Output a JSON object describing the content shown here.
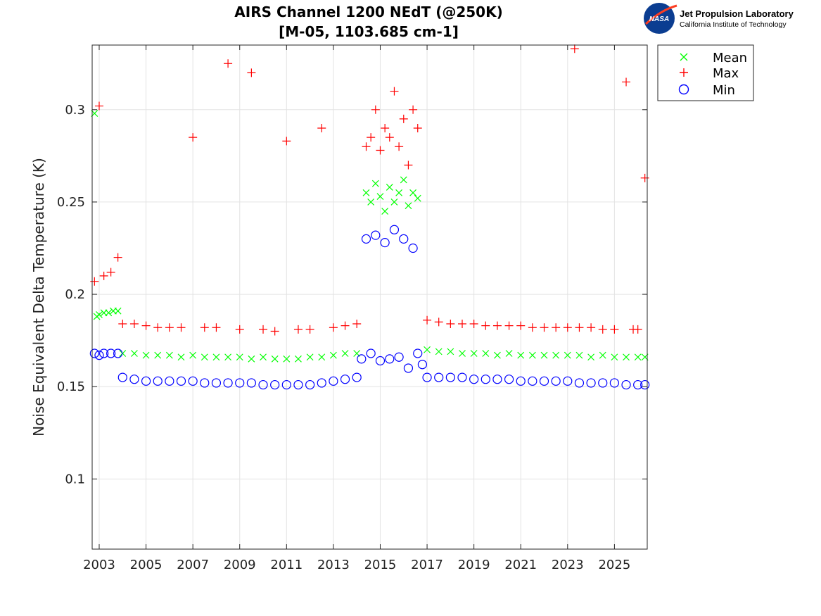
{
  "chart_data": {
    "type": "scatter",
    "title": "AIRS Channel 1200 NEdT (@250K)",
    "subtitle": "[M-05, 1103.685 cm-1]",
    "xlabel": "",
    "ylabel": "Noise Equivalent Delta Temperature (K)",
    "xlim": [
      2002.7,
      2026.4
    ],
    "ylim": [
      0.062,
      0.335
    ],
    "x_ticks": [
      2003,
      2005,
      2007,
      2009,
      2011,
      2013,
      2015,
      2017,
      2019,
      2021,
      2023,
      2025
    ],
    "x_tick_labels": [
      "2003",
      "2005",
      "2007",
      "2009",
      "2011",
      "2013",
      "2015",
      "2017",
      "2019",
      "2021",
      "2023",
      "2025"
    ],
    "y_ticks": [
      0.1,
      0.15,
      0.2,
      0.25,
      0.3
    ],
    "y_tick_labels": [
      "0.1",
      "0.15",
      "0.2",
      "0.25",
      "0.3"
    ],
    "grid": true,
    "legend_position": "outside-top-right",
    "series": [
      {
        "name": "Mean",
        "color": "#00ff00",
        "marker": "x",
        "x": [
          2002.8,
          2002.9,
          2003.0,
          2003.2,
          2003.4,
          2003.6,
          2003.8,
          2004.0,
          2004.5,
          2005.0,
          2005.5,
          2006.0,
          2006.5,
          2007.0,
          2007.5,
          2008.0,
          2008.5,
          2009.0,
          2009.5,
          2010.0,
          2010.5,
          2011.0,
          2011.5,
          2012.0,
          2012.5,
          2013.0,
          2013.5,
          2014.0,
          2014.4,
          2014.6,
          2014.8,
          2015.0,
          2015.2,
          2015.4,
          2015.6,
          2015.8,
          2016.0,
          2016.2,
          2016.4,
          2016.6,
          2017.0,
          2017.5,
          2018.0,
          2018.5,
          2019.0,
          2019.5,
          2020.0,
          2020.5,
          2021.0,
          2021.5,
          2022.0,
          2022.5,
          2023.0,
          2023.5,
          2024.0,
          2024.5,
          2025.0,
          2025.5,
          2026.0,
          2026.3
        ],
        "y": [
          0.298,
          0.188,
          0.189,
          0.19,
          0.19,
          0.191,
          0.191,
          0.168,
          0.168,
          0.167,
          0.167,
          0.167,
          0.166,
          0.167,
          0.166,
          0.166,
          0.166,
          0.166,
          0.165,
          0.166,
          0.165,
          0.165,
          0.165,
          0.166,
          0.166,
          0.167,
          0.168,
          0.168,
          0.255,
          0.25,
          0.26,
          0.253,
          0.245,
          0.258,
          0.25,
          0.255,
          0.262,
          0.248,
          0.255,
          0.252,
          0.17,
          0.169,
          0.169,
          0.168,
          0.168,
          0.168,
          0.167,
          0.168,
          0.167,
          0.167,
          0.167,
          0.167,
          0.167,
          0.167,
          0.166,
          0.167,
          0.166,
          0.166,
          0.166,
          0.166
        ]
      },
      {
        "name": "Max",
        "color": "#ff0000",
        "marker": "+",
        "x": [
          2002.8,
          2003.0,
          2003.2,
          2003.5,
          2003.8,
          2004.0,
          2004.5,
          2005.0,
          2005.5,
          2006.0,
          2006.5,
          2007.0,
          2007.5,
          2008.0,
          2008.5,
          2009.0,
          2009.5,
          2010.0,
          2010.5,
          2011.0,
          2011.5,
          2012.0,
          2012.5,
          2013.0,
          2013.5,
          2014.0,
          2014.4,
          2014.6,
          2014.8,
          2015.0,
          2015.2,
          2015.4,
          2015.6,
          2015.8,
          2016.0,
          2016.2,
          2016.4,
          2016.6,
          2017.0,
          2017.5,
          2018.0,
          2018.5,
          2019.0,
          2019.5,
          2020.0,
          2020.5,
          2021.0,
          2021.5,
          2022.0,
          2022.5,
          2023.0,
          2023.3,
          2023.5,
          2024.0,
          2024.5,
          2025.0,
          2025.5,
          2025.8,
          2026.0,
          2026.3
        ],
        "y": [
          0.207,
          0.302,
          0.21,
          0.212,
          0.22,
          0.184,
          0.184,
          0.183,
          0.182,
          0.182,
          0.182,
          0.285,
          0.182,
          0.182,
          0.325,
          0.181,
          0.32,
          0.181,
          0.18,
          0.283,
          0.181,
          0.181,
          0.29,
          0.182,
          0.183,
          0.184,
          0.28,
          0.285,
          0.3,
          0.278,
          0.29,
          0.285,
          0.31,
          0.28,
          0.295,
          0.27,
          0.3,
          0.29,
          0.186,
          0.185,
          0.184,
          0.184,
          0.184,
          0.183,
          0.183,
          0.183,
          0.183,
          0.182,
          0.182,
          0.182,
          0.182,
          0.333,
          0.182,
          0.182,
          0.181,
          0.181,
          0.315,
          0.181,
          0.181,
          0.263
        ]
      },
      {
        "name": "Min",
        "color": "#0000ff",
        "marker": "o",
        "x": [
          2002.8,
          2003.0,
          2003.2,
          2003.5,
          2003.8,
          2004.0,
          2004.5,
          2005.0,
          2005.5,
          2006.0,
          2006.5,
          2007.0,
          2007.5,
          2008.0,
          2008.5,
          2009.0,
          2009.5,
          2010.0,
          2010.5,
          2011.0,
          2011.5,
          2012.0,
          2012.5,
          2013.0,
          2013.5,
          2014.0,
          2014.2,
          2014.4,
          2014.6,
          2014.8,
          2015.0,
          2015.2,
          2015.4,
          2015.6,
          2015.8,
          2016.0,
          2016.2,
          2016.4,
          2016.6,
          2016.8,
          2017.0,
          2017.5,
          2018.0,
          2018.5,
          2019.0,
          2019.5,
          2020.0,
          2020.5,
          2021.0,
          2021.5,
          2022.0,
          2022.5,
          2023.0,
          2023.5,
          2024.0,
          2024.5,
          2025.0,
          2025.5,
          2026.0,
          2026.3
        ],
        "y": [
          0.168,
          0.167,
          0.168,
          0.168,
          0.168,
          0.155,
          0.154,
          0.153,
          0.153,
          0.153,
          0.153,
          0.153,
          0.152,
          0.152,
          0.152,
          0.152,
          0.152,
          0.151,
          0.151,
          0.151,
          0.151,
          0.151,
          0.152,
          0.153,
          0.154,
          0.155,
          0.165,
          0.23,
          0.168,
          0.232,
          0.164,
          0.228,
          0.165,
          0.235,
          0.166,
          0.23,
          0.16,
          0.225,
          0.168,
          0.162,
          0.155,
          0.155,
          0.155,
          0.155,
          0.154,
          0.154,
          0.154,
          0.154,
          0.153,
          0.153,
          0.153,
          0.153,
          0.153,
          0.152,
          0.152,
          0.152,
          0.152,
          0.151,
          0.151,
          0.151
        ]
      }
    ]
  },
  "logo": {
    "agency": "NASA",
    "line1": "Jet Propulsion Laboratory",
    "line2": "California Institute of Technology"
  }
}
